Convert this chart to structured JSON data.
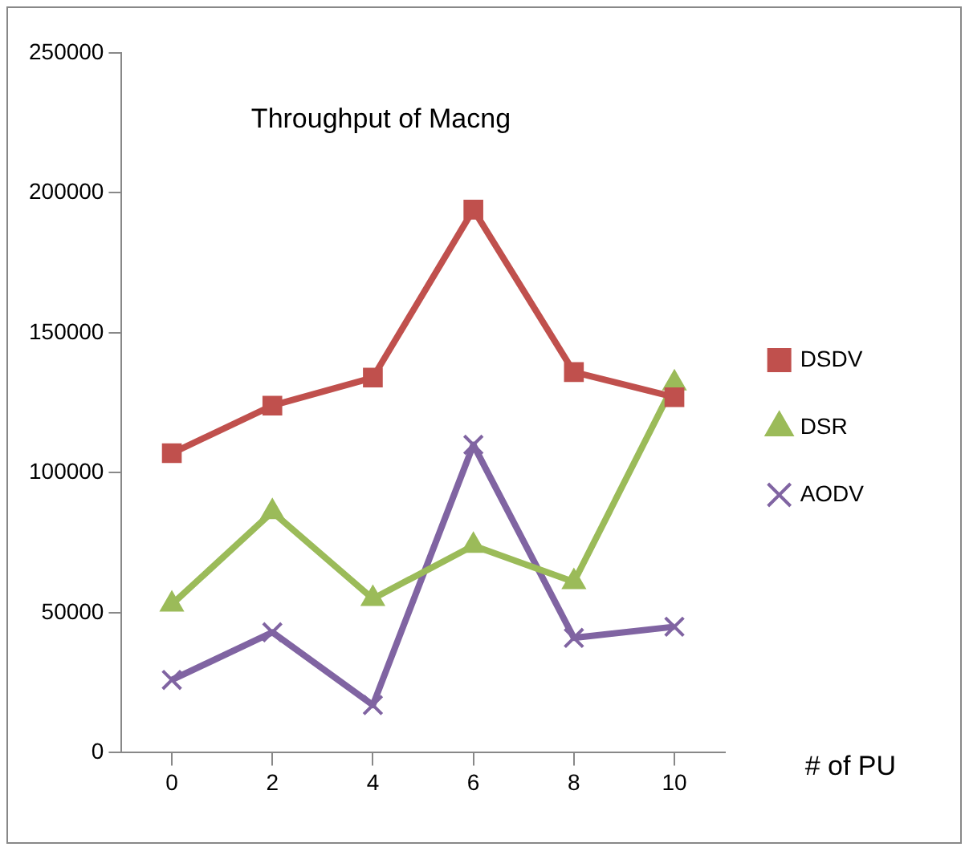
{
  "chart_data": {
    "type": "line",
    "title": "Throughput of Macng",
    "xlabel": "# of PU",
    "categories": [
      "0",
      "2",
      "4",
      "6",
      "8",
      "10"
    ],
    "series": [
      {
        "name": "DSDV",
        "color": "#c0504d",
        "marker": "square",
        "values": [
          107000,
          124000,
          134000,
          194000,
          136000,
          127000
        ]
      },
      {
        "name": "DSR",
        "color": "#9bbb59",
        "marker": "triangle",
        "values": [
          53000,
          86000,
          55000,
          74000,
          61000,
          132000
        ]
      },
      {
        "name": "AODV",
        "color": "#8064a2",
        "marker": "cross",
        "values": [
          26000,
          43000,
          17000,
          110000,
          41000,
          45000
        ]
      }
    ],
    "ylim": [
      0,
      250000
    ],
    "yticks": [
      0,
      50000,
      100000,
      150000,
      200000,
      250000
    ],
    "grid": false,
    "legend": "right",
    "line_style": "solid"
  }
}
